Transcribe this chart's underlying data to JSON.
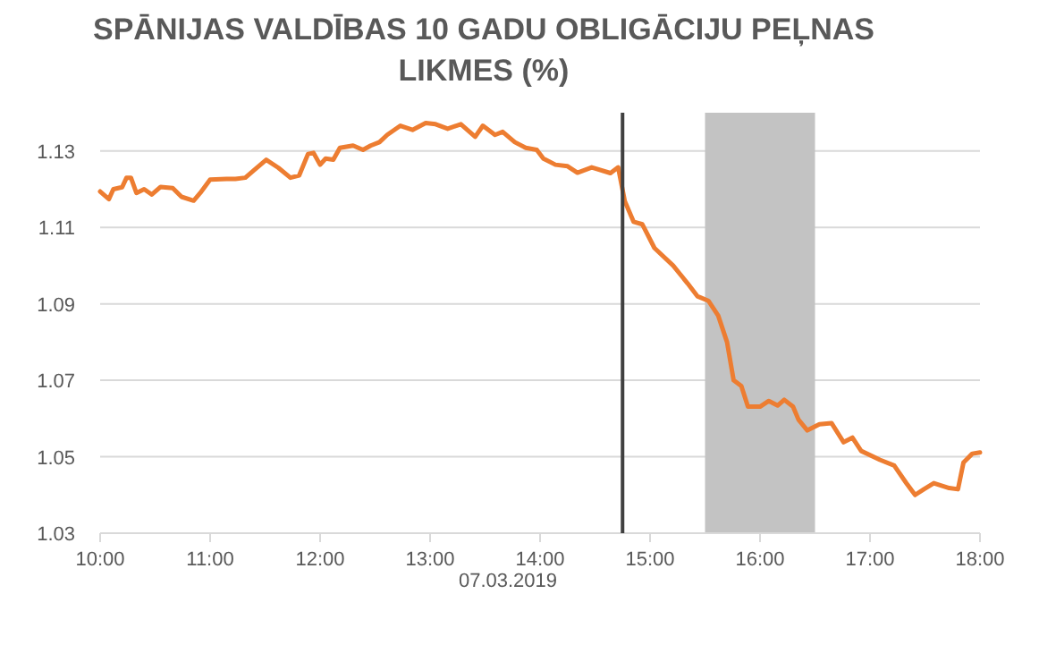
{
  "chart_data": {
    "type": "line",
    "title": "SPĀNIJAS VALDĪBAS 10 GADU OBLIGĀCIJU PEĻNAS LIKMES (%)",
    "xlabel": "07.03.2019",
    "x": [
      10.0,
      10.08,
      10.12,
      10.2,
      10.24,
      10.28,
      10.33,
      10.4,
      10.47,
      10.55,
      10.66,
      10.74,
      10.85,
      10.91,
      11.0,
      11.15,
      11.23,
      11.32,
      11.4,
      11.51,
      11.62,
      11.73,
      11.81,
      11.89,
      11.94,
      12.0,
      12.05,
      12.12,
      12.18,
      12.3,
      12.39,
      12.46,
      12.54,
      12.61,
      12.73,
      12.84,
      12.96,
      13.05,
      13.16,
      13.28,
      13.41,
      13.48,
      13.59,
      13.66,
      13.77,
      13.87,
      13.97,
      14.03,
      14.14,
      14.25,
      14.34,
      14.47,
      14.64,
      14.71,
      14.77,
      14.85,
      14.93,
      15.04,
      15.21,
      15.34,
      15.43,
      15.53,
      15.62,
      15.7,
      15.76,
      15.83,
      15.89,
      16.0,
      16.08,
      16.16,
      16.22,
      16.3,
      16.35,
      16.43,
      16.54,
      16.65,
      16.76,
      16.84,
      16.92,
      17.09,
      17.22,
      17.33,
      17.41,
      17.49,
      17.58,
      17.72,
      17.8,
      17.85,
      17.93,
      18.0
    ],
    "series": [
      {
        "color": "#ed7d31",
        "values": [
          1.1194,
          1.1174,
          1.12,
          1.1205,
          1.123,
          1.123,
          1.119,
          1.12,
          1.1186,
          1.1206,
          1.1203,
          1.118,
          1.117,
          1.119,
          1.1225,
          1.1227,
          1.1227,
          1.123,
          1.125,
          1.1277,
          1.1256,
          1.123,
          1.1236,
          1.1292,
          1.1295,
          1.1264,
          1.128,
          1.1277,
          1.1308,
          1.1314,
          1.1303,
          1.1314,
          1.1323,
          1.1342,
          1.1366,
          1.1355,
          1.1373,
          1.137,
          1.1358,
          1.137,
          1.1337,
          1.1366,
          1.1342,
          1.135,
          1.1323,
          1.1308,
          1.1303,
          1.128,
          1.1264,
          1.126,
          1.1243,
          1.1257,
          1.1242,
          1.1257,
          1.1169,
          1.1115,
          1.1108,
          1.1046,
          1.1,
          1.0954,
          1.092,
          1.0908,
          1.0869,
          1.08,
          1.07,
          1.0685,
          1.0631,
          1.0631,
          1.0646,
          1.0634,
          1.0649,
          1.0631,
          1.0597,
          1.0569,
          1.0585,
          1.0588,
          1.0538,
          1.055,
          1.0515,
          1.0492,
          1.0477,
          1.0431,
          1.04,
          1.0415,
          1.0431,
          1.0418,
          1.0415,
          1.0485,
          1.0508,
          1.0511
        ]
      }
    ],
    "xlim": [
      10,
      18
    ],
    "xticks": [
      {
        "value": 10,
        "label": "10:00"
      },
      {
        "value": 11,
        "label": "11:00"
      },
      {
        "value": 12,
        "label": "12:00"
      },
      {
        "value": 13,
        "label": "13:00"
      },
      {
        "value": 14,
        "label": "14:00"
      },
      {
        "value": 15,
        "label": "15:00"
      },
      {
        "value": 16,
        "label": "16:00"
      },
      {
        "value": 17,
        "label": "17:00"
      },
      {
        "value": 18,
        "label": "18:00"
      }
    ],
    "ylim": [
      1.03,
      1.14
    ],
    "yticks": [
      1.03,
      1.05,
      1.07,
      1.09,
      1.11,
      1.13
    ],
    "grid": "y",
    "marker": "none",
    "line_style": "solid",
    "ref_lines": [
      {
        "axis": "x",
        "value": 14.75,
        "color": "#404040"
      }
    ],
    "bands": [
      {
        "axis": "x",
        "from": 15.5,
        "to": 16.5,
        "color": "#c3c3c3"
      }
    ]
  }
}
